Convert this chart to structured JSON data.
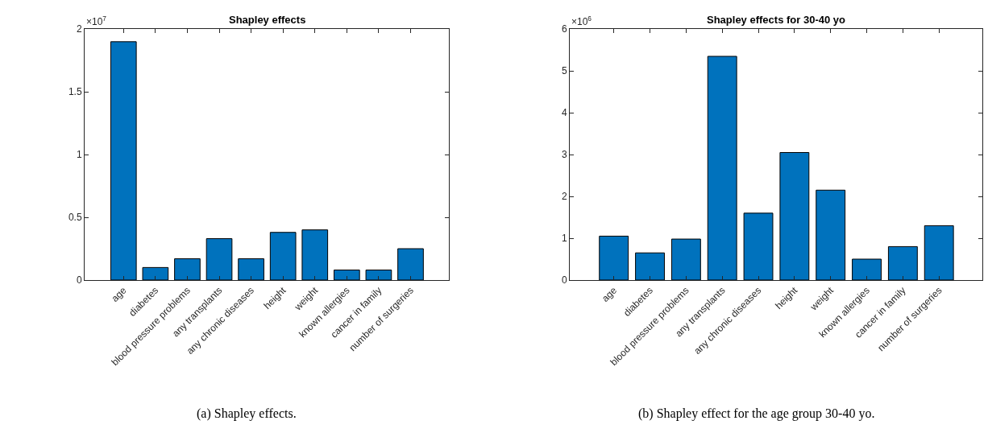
{
  "chart_data": [
    {
      "type": "bar",
      "title": "Shapley effects",
      "categories": [
        "age",
        "diabetes",
        "blood pressure problems",
        "any transplants",
        "any chronic diseases",
        "height",
        "weight",
        "known allergies",
        "cancer in family",
        "number of surgeries"
      ],
      "values": [
        1.9,
        0.1,
        0.17,
        0.33,
        0.17,
        0.38,
        0.4,
        0.08,
        0.08,
        0.25
      ],
      "color": "#0072bd",
      "ylim": [
        0,
        2
      ],
      "yticks": [
        0,
        0.5,
        1,
        1.5,
        2
      ],
      "annotations": [
        "×10$^{7}$",
        "(a) Shapley effects."
      ]
    },
    {
      "type": "bar",
      "title": "Shapley effects for 30-40 yo",
      "categories": [
        "age",
        "diabetes",
        "blood pressure problems",
        "any transplants",
        "any chronic diseases",
        "height",
        "weight",
        "known allergies",
        "cancer in family",
        "number of surgeries"
      ],
      "values": [
        1.05,
        0.65,
        0.98,
        5.35,
        1.6,
        3.05,
        2.15,
        0.5,
        0.8,
        1.3
      ],
      "color": "#0072bd",
      "ylim": [
        0,
        6
      ],
      "yticks": [
        0,
        1,
        2,
        3,
        4,
        5,
        6
      ],
      "annotations": [
        "×10$^{6}$",
        "(b) Shapley effect for the age group 30-40 yo."
      ]
    }
  ]
}
